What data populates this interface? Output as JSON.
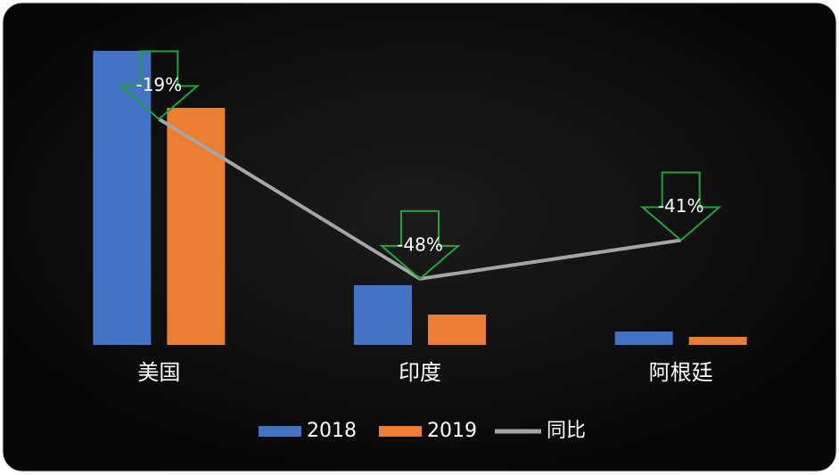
{
  "chart_data": {
    "type": "bar",
    "categories": [
      "美国",
      "印度",
      "阿根廷"
    ],
    "series": [
      {
        "name": "2018",
        "color": "#4472c4",
        "values": [
          330,
          67,
          15
        ]
      },
      {
        "name": "2019",
        "color": "#ed7d31",
        "values": [
          266,
          34,
          9
        ]
      },
      {
        "name": "同比",
        "type": "line",
        "axis": "y2",
        "color": "#a5a5a5",
        "values": [
          -19,
          -48,
          -41
        ],
        "value_labels": [
          "-19%",
          "-48%",
          "-41%"
        ]
      }
    ],
    "ylim": [
      0,
      340
    ],
    "y2lim": [
      -60,
      -5
    ],
    "legend": "bottom"
  }
}
